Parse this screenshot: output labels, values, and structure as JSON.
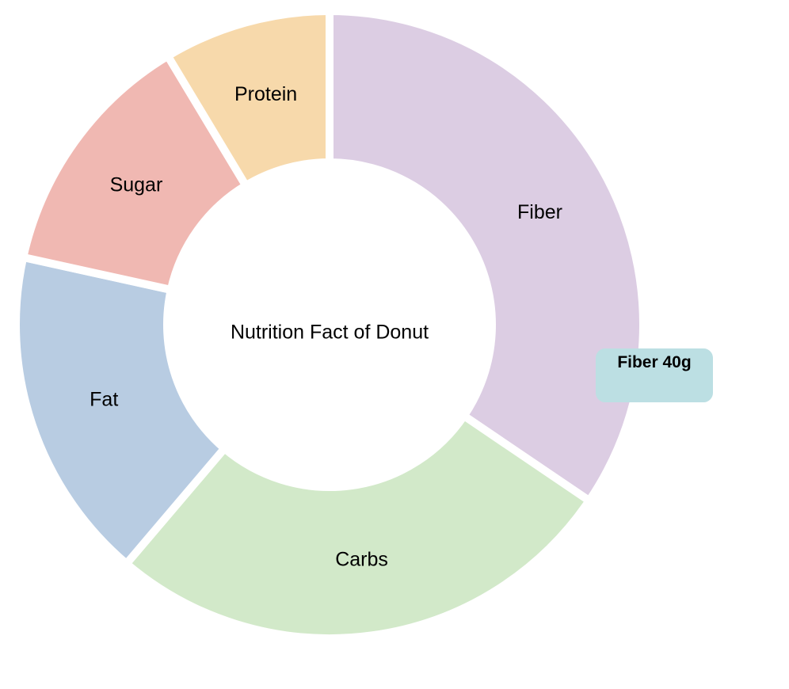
{
  "chart_data": {
    "type": "pie",
    "title": "Nutrition Fact of Donut",
    "unit": "g",
    "slices": [
      {
        "label": "Fiber",
        "value": 40,
        "color": "#dccde3"
      },
      {
        "label": "Carbs",
        "value": 31,
        "color": "#d2e9c9"
      },
      {
        "label": "Fat",
        "value": 20,
        "color": "#b8cce2"
      },
      {
        "label": "Sugar",
        "value": 15,
        "color": "#f0b8b2"
      },
      {
        "label": "Protein",
        "value": 10,
        "color": "#f7d9ab"
      }
    ]
  },
  "tooltip": {
    "text": "Fiber 40g"
  }
}
